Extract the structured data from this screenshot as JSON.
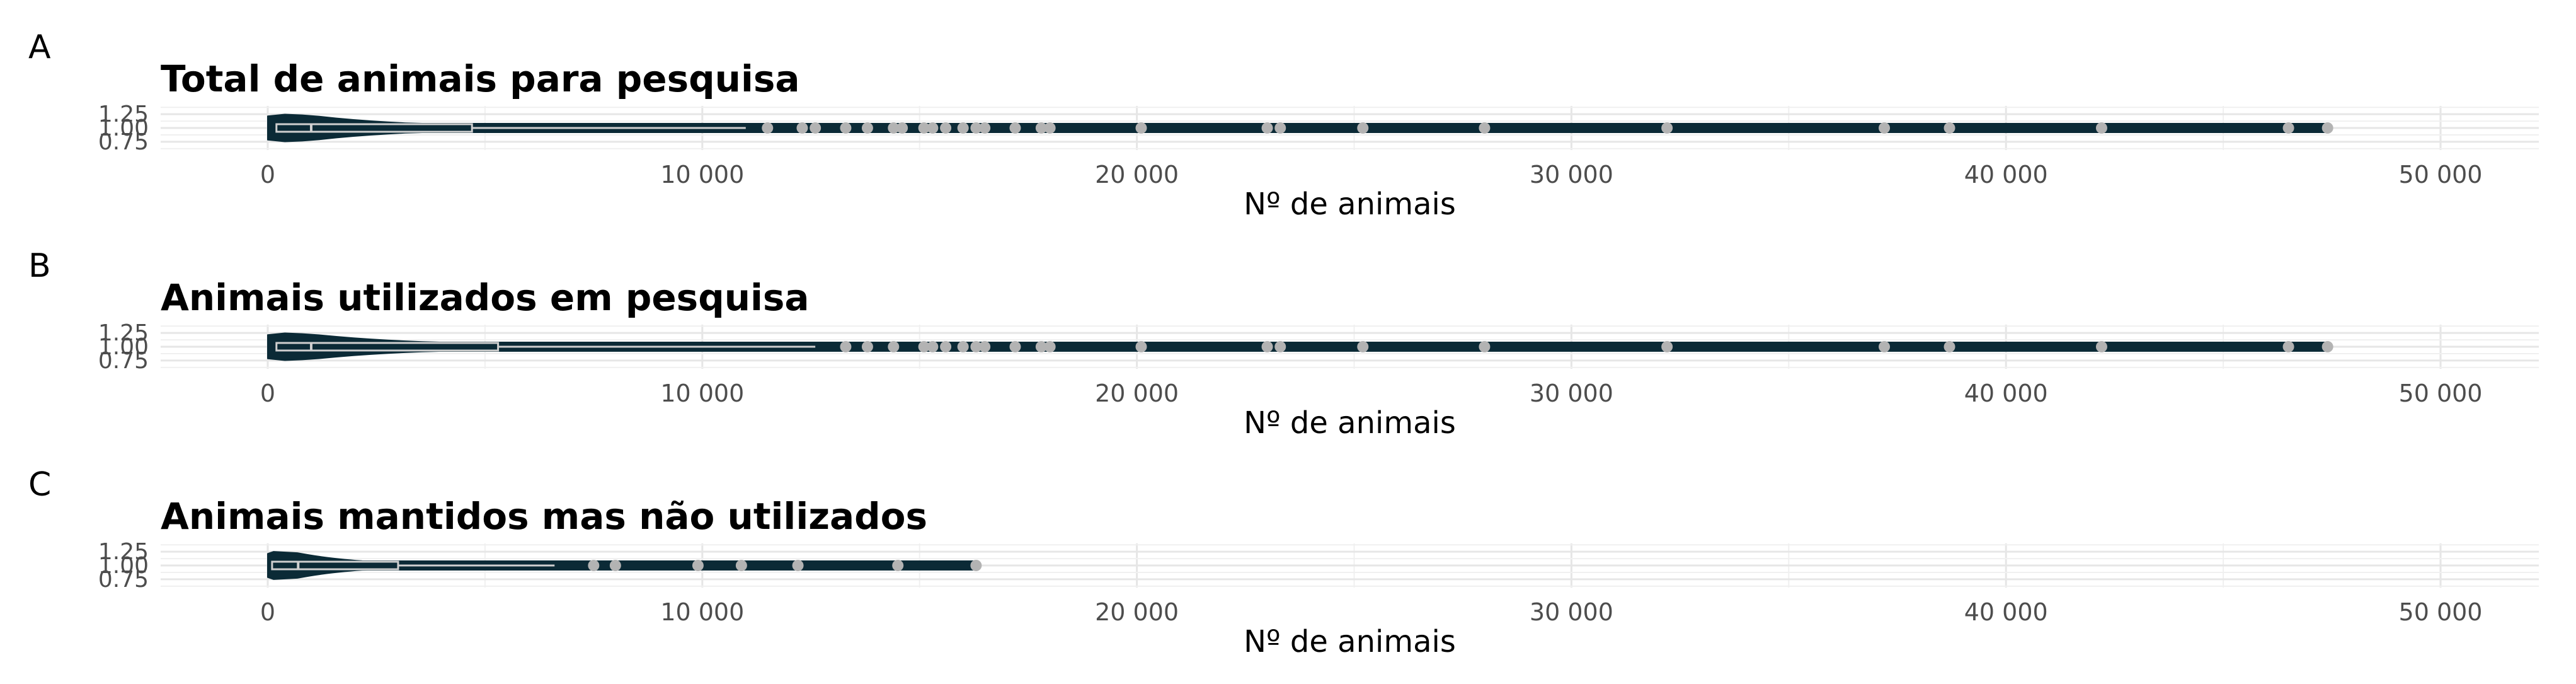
{
  "chart_data": [
    {
      "type": "violin",
      "panel": "A",
      "title": "Total de animais para pesquisa",
      "xlabel": "Nº de animais",
      "xlim": [
        -2500,
        52500
      ],
      "xticks": [
        0,
        10000,
        20000,
        30000,
        40000,
        50000
      ],
      "xtick_labels": [
        "0",
        "10 000",
        "20 000",
        "30 000",
        "40 000",
        "50 000"
      ],
      "ylim": [
        0.6,
        1.4
      ],
      "yticks": [
        0.75,
        1.0,
        1.25
      ],
      "ytick_labels": [
        "0.75",
        "1.00",
        "1.25"
      ],
      "box": {
        "q1": 200,
        "median": 1000,
        "q3": 4700,
        "whisker_high": 11000
      },
      "outliers": [
        11500,
        12300,
        12600,
        13300,
        13800,
        14400,
        14600,
        15100,
        15300,
        15600,
        16000,
        16300,
        16500,
        17200,
        17800,
        18000,
        20100,
        23000,
        23300,
        25200,
        28000,
        32200,
        37200,
        38700,
        42200,
        46500,
        47400
      ],
      "max": 47400,
      "grid": true
    },
    {
      "type": "violin",
      "panel": "B",
      "title": "Animais utilizados em pesquisa",
      "xlabel": "Nº de animais",
      "xlim": [
        -2500,
        52500
      ],
      "xticks": [
        0,
        10000,
        20000,
        30000,
        40000,
        50000
      ],
      "xtick_labels": [
        "0",
        "10 000",
        "20 000",
        "30 000",
        "40 000",
        "50 000"
      ],
      "ylim": [
        0.6,
        1.4
      ],
      "yticks": [
        0.75,
        1.0,
        1.25
      ],
      "ytick_labels": [
        "0.75",
        "1.00",
        "1.25"
      ],
      "box": {
        "q1": 200,
        "median": 1000,
        "q3": 5300,
        "whisker_high": 12600
      },
      "outliers": [
        13300,
        13800,
        14400,
        15100,
        15300,
        15600,
        16000,
        16300,
        16500,
        17200,
        17800,
        18000,
        20100,
        23000,
        23300,
        25200,
        28000,
        32200,
        37200,
        38700,
        42200,
        46500,
        47400
      ],
      "max": 47400,
      "grid": true
    },
    {
      "type": "violin",
      "panel": "C",
      "title": "Animais  mantidos mas não utilizados",
      "xlabel": "Nº de animais",
      "xlim": [
        -2500,
        52500
      ],
      "xticks": [
        0,
        10000,
        20000,
        30000,
        40000,
        50000
      ],
      "xtick_labels": [
        "0",
        "10 000",
        "20 000",
        "30 000",
        "40 000",
        "50 000"
      ],
      "ylim": [
        0.6,
        1.4
      ],
      "yticks": [
        0.75,
        1.0,
        1.25
      ],
      "ytick_labels": [
        "0.75",
        "1.00",
        "1.25"
      ],
      "box": {
        "q1": 100,
        "median": 700,
        "q3": 3000,
        "whisker_high": 6600
      },
      "outliers": [
        7500,
        8000,
        9900,
        10900,
        12200,
        14500,
        16300
      ],
      "max": 16300,
      "grid": true
    }
  ],
  "colors": {
    "violin_fill": "#0b2a36",
    "box_outline": "#cfcfcf",
    "outlier": "#b3b3b3",
    "grid_major": "#e6e6e6",
    "grid_minor": "#f0f0f0",
    "tick_text": "#4d4d4d"
  }
}
